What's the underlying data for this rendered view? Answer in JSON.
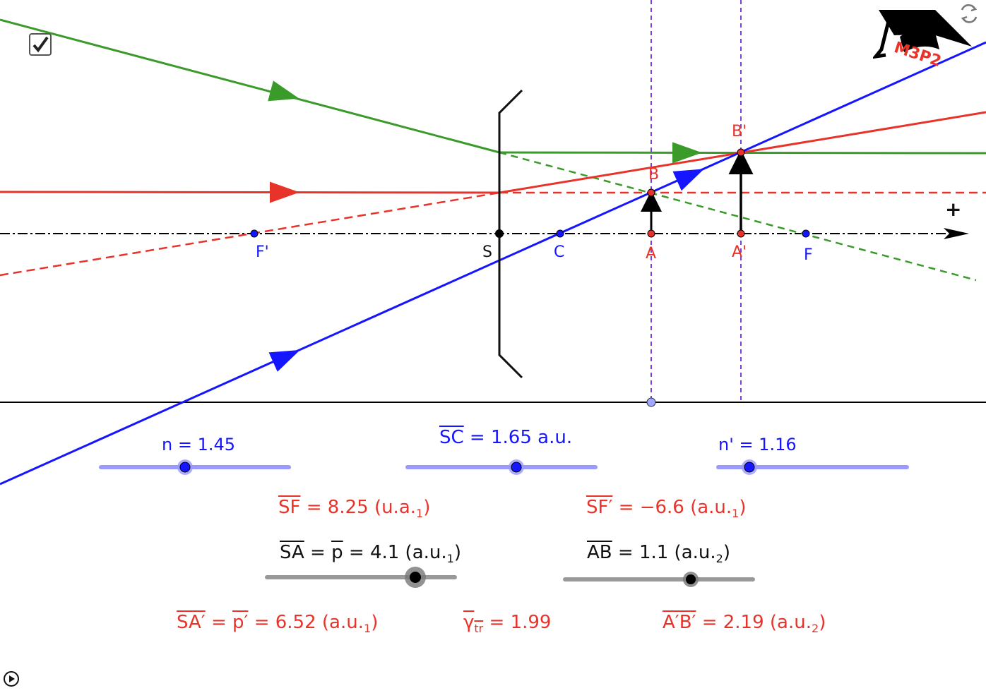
{
  "colors": {
    "blue": "#1515ff",
    "red": "#e8332a",
    "green": "#3a9a2a",
    "violet": "#7b3fe0",
    "slider": "#9999ff"
  },
  "checkbox": {
    "checked": true
  },
  "logo": {
    "text": "M3P2"
  },
  "points": {
    "Fp": "F'",
    "S": "S",
    "C": "C",
    "A": "A",
    "Ap": "A'",
    "F": "F",
    "B": "B",
    "Bp": "B'",
    "plus": "+"
  },
  "sliders": {
    "n": {
      "label": "n = 1.45",
      "value": 1.45
    },
    "sc": {
      "label_name": "SC",
      "label_rest": " = 1.65 a.u.",
      "value": 1.65
    },
    "np": {
      "label": "n' = 1.16",
      "value": 1.16
    },
    "sa": {
      "label_name": "SA",
      "eq": " = ",
      "p": "p",
      "label_rest": " = 4.1 (a.u.",
      "sub": "1",
      "close": ")",
      "value": 4.1
    },
    "ab": {
      "label_name": "AB",
      "label_rest": " =  1.1 (a.u.",
      "sub": "2",
      "close": ")",
      "value": 1.1
    }
  },
  "results": {
    "sf": {
      "name": "SF",
      "rest": " = 8.25 (u.a.",
      "sub": "1",
      "close": ")"
    },
    "sfp": {
      "name": "SF′",
      "rest": " = −6.6 (a.u.",
      "sub": "1",
      "close": ")"
    },
    "sap": {
      "name": "SA′",
      "eq": " = ",
      "p": "p′",
      "rest": " = 6.52 (a.u.",
      "sub": "1",
      "close": ")"
    },
    "gamma": {
      "name": "γ",
      "sub": "tr",
      "rest": " = 1.99"
    },
    "apbp": {
      "name": "A′B′",
      "rest": " = 2.19 (a.u.",
      "sub": "2",
      "close": ")"
    }
  }
}
